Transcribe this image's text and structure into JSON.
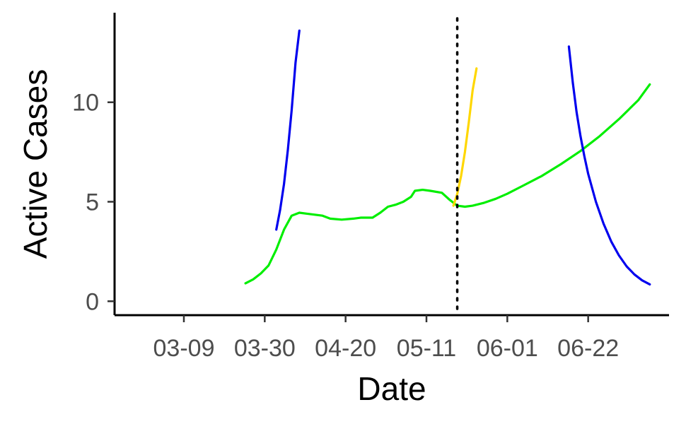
{
  "chart_data": {
    "type": "line",
    "title": "",
    "xlabel": "Date",
    "ylabel": "Active Cases",
    "x_ticks": [
      {
        "date": "2020-03-09",
        "label": "03-09"
      },
      {
        "date": "2020-03-30",
        "label": "03-30"
      },
      {
        "date": "2020-04-20",
        "label": "04-20"
      },
      {
        "date": "2020-05-11",
        "label": "05-11"
      },
      {
        "date": "2020-06-01",
        "label": "06-01"
      },
      {
        "date": "2020-06-22",
        "label": "06-22"
      }
    ],
    "y_ticks": [
      0,
      5,
      10
    ],
    "xlim": [
      "2020-02-20",
      "2020-07-13"
    ],
    "ylim": [
      -0.7,
      14.5
    ],
    "grid": false,
    "legend": "none",
    "vline": {
      "x": "2020-05-19",
      "style": "dotted",
      "color": "#000000"
    },
    "series": [
      {
        "color": "#00ee00",
        "points": [
          [
            "2020-03-25",
            0.9
          ],
          [
            "2020-03-27",
            1.1
          ],
          [
            "2020-03-29",
            1.4
          ],
          [
            "2020-03-31",
            1.8
          ],
          [
            "2020-04-02",
            2.6
          ],
          [
            "2020-04-04",
            3.6
          ],
          [
            "2020-04-06",
            4.3
          ],
          [
            "2020-04-08",
            4.45
          ],
          [
            "2020-04-10",
            4.4
          ],
          [
            "2020-04-14",
            4.3
          ],
          [
            "2020-04-16",
            4.15
          ],
          [
            "2020-04-19",
            4.1
          ],
          [
            "2020-04-22",
            4.15
          ],
          [
            "2020-04-24",
            4.2
          ],
          [
            "2020-04-27",
            4.2
          ],
          [
            "2020-04-29",
            4.45
          ],
          [
            "2020-05-01",
            4.75
          ],
          [
            "2020-05-03",
            4.85
          ],
          [
            "2020-05-05",
            5.0
          ],
          [
            "2020-05-07",
            5.25
          ],
          [
            "2020-05-08",
            5.55
          ],
          [
            "2020-05-10",
            5.6
          ],
          [
            "2020-05-12",
            5.55
          ],
          [
            "2020-05-15",
            5.45
          ],
          [
            "2020-05-17",
            5.1
          ],
          [
            "2020-05-19",
            4.8
          ],
          [
            "2020-05-21",
            4.75
          ],
          [
            "2020-05-23",
            4.8
          ],
          [
            "2020-05-26",
            4.95
          ],
          [
            "2020-05-29",
            5.15
          ],
          [
            "2020-06-01",
            5.4
          ],
          [
            "2020-06-05",
            5.8
          ],
          [
            "2020-06-10",
            6.3
          ],
          [
            "2020-06-15",
            6.9
          ],
          [
            "2020-06-20",
            7.55
          ],
          [
            "2020-06-25",
            8.3
          ],
          [
            "2020-06-30",
            9.15
          ],
          [
            "2020-07-05",
            10.1
          ],
          [
            "2020-07-08",
            10.9
          ]
        ]
      },
      {
        "color": "#0000ee",
        "points": [
          [
            "2020-04-02",
            3.6
          ],
          [
            "2020-04-03",
            4.6
          ],
          [
            "2020-04-04",
            5.9
          ],
          [
            "2020-04-05",
            7.6
          ],
          [
            "2020-04-06",
            9.6
          ],
          [
            "2020-04-07",
            12.0
          ],
          [
            "2020-04-08",
            13.6
          ]
        ]
      },
      {
        "color": "#0000ee",
        "points": [
          [
            "2020-06-17",
            12.8
          ],
          [
            "2020-06-18",
            11.0
          ],
          [
            "2020-06-19",
            9.5
          ],
          [
            "2020-06-20",
            8.3
          ],
          [
            "2020-06-21",
            7.3
          ],
          [
            "2020-06-22",
            6.4
          ],
          [
            "2020-06-24",
            5.0
          ],
          [
            "2020-06-26",
            3.9
          ],
          [
            "2020-06-28",
            3.0
          ],
          [
            "2020-06-30",
            2.3
          ],
          [
            "2020-07-02",
            1.75
          ],
          [
            "2020-07-04",
            1.35
          ],
          [
            "2020-07-06",
            1.05
          ],
          [
            "2020-07-08",
            0.85
          ]
        ]
      },
      {
        "color": "#ffd700",
        "points": [
          [
            "2020-05-18",
            4.8
          ],
          [
            "2020-05-19",
            5.4
          ],
          [
            "2020-05-20",
            6.3
          ],
          [
            "2020-05-21",
            7.5
          ],
          [
            "2020-05-22",
            9.0
          ],
          [
            "2020-05-23",
            10.6
          ],
          [
            "2020-05-24",
            11.7
          ]
        ]
      }
    ]
  }
}
